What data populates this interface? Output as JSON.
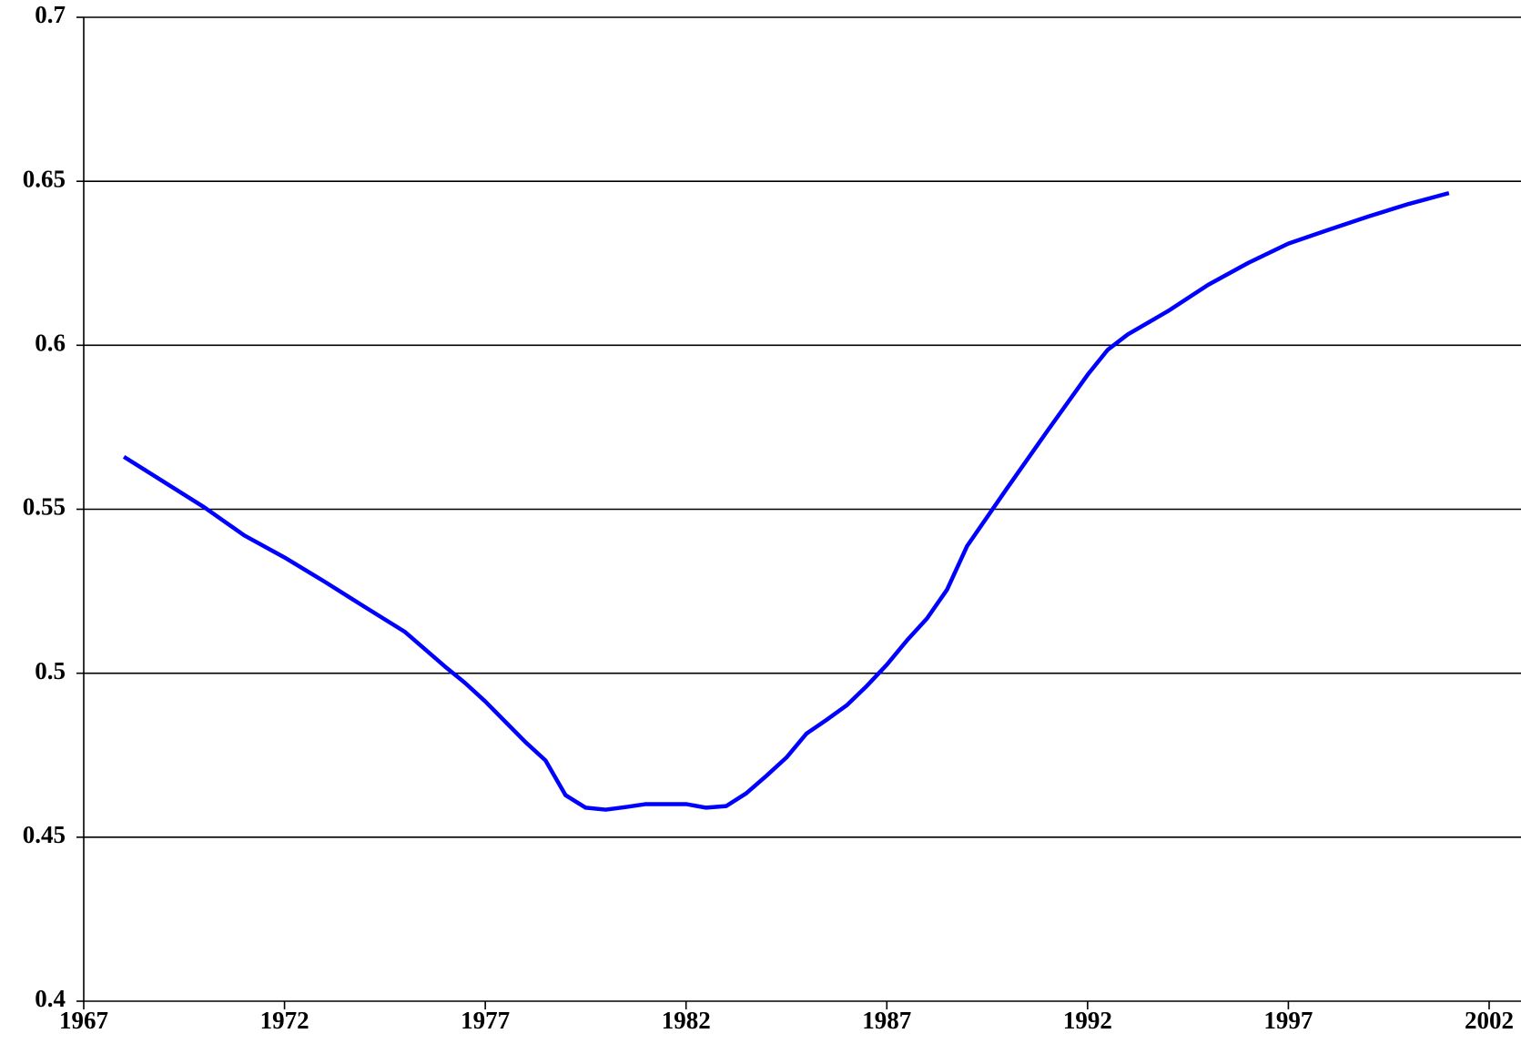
{
  "chart_data": {
    "type": "line",
    "x": [
      1968,
      1970,
      1971,
      1972,
      1973,
      1974,
      1975,
      1976,
      1976.5,
      1977,
      1977.5,
      1978,
      1978.5,
      1979,
      1979.5,
      1980,
      1980.5,
      1981,
      1982,
      1982.5,
      1983,
      1983.5,
      1984,
      1984.5,
      1985,
      1985.5,
      1986,
      1986.5,
      1987,
      1987.5,
      1988,
      1988.5,
      1989,
      1990,
      1991,
      1992,
      1992.5,
      1993,
      1994,
      1995,
      1996,
      1997,
      1998,
      1999,
      2000,
      2001
    ],
    "series": [
      {
        "color": "#0000ff",
        "values": [
          0.566,
          0.5506,
          0.542,
          0.5353,
          0.5279,
          0.5202,
          0.5126,
          0.502,
          0.497,
          0.4914,
          0.4852,
          0.479,
          0.4734,
          0.4628,
          0.459,
          0.4584,
          0.4592,
          0.4601,
          0.4601,
          0.459,
          0.4595,
          0.4634,
          0.4687,
          0.4743,
          0.4816,
          0.4858,
          0.4902,
          0.4961,
          0.5026,
          0.51,
          0.5167,
          0.5255,
          0.5388,
          0.5565,
          0.5739,
          0.591,
          0.5986,
          0.6033,
          0.6104,
          0.6184,
          0.6251,
          0.631,
          0.6352,
          0.6393,
          0.6431,
          0.6464
        ]
      }
    ],
    "xlim": [
      1967,
      2002
    ],
    "xticks": [
      1967,
      1972,
      1977,
      1982,
      1987,
      1992,
      1997,
      2002
    ],
    "ylim": [
      0.4,
      0.7
    ],
    "yticks": [
      0.4,
      0.45,
      0.5,
      0.55,
      0.6,
      0.65,
      0.7
    ],
    "grid": true
  }
}
